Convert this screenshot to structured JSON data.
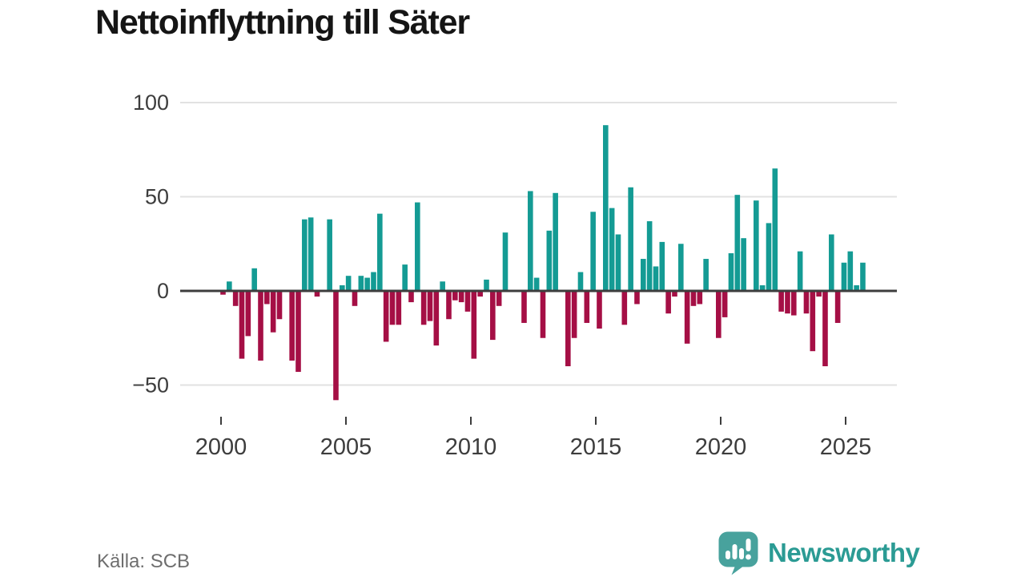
{
  "title": "Nettoinflyttning till Säter",
  "source": "Källa: SCB",
  "branding": {
    "name": "Newsworthy",
    "logo_icon": "newsworthy-speech-bubble-bar-chart-icon"
  },
  "colors": {
    "positive_bar": "#149b94",
    "negative_bar": "#a50f45",
    "zero_axis": "#3d3d3d",
    "gridline": "#e2e2e2",
    "tick_text": "#3d3d3d",
    "title_text": "#151515",
    "source_text": "#6e6e6e",
    "brand_text_teal": "#2b9b94",
    "brand_icon_teal": "#48a29d"
  },
  "chart_data": {
    "type": "bar",
    "title": "Nettoinflyttning till Säter",
    "frequency": "quarterly",
    "grid": "horizontal-light",
    "legend": "none",
    "x_axis": {
      "tick_labels": [
        "2000",
        "2005",
        "2010",
        "2015",
        "2020",
        "2025"
      ]
    },
    "y_axis": {
      "ticks": [
        100,
        50,
        0,
        -50
      ],
      "tick_labels": [
        "100",
        "50",
        "0",
        "−50"
      ],
      "range": [
        -65,
        105
      ]
    },
    "series": [
      {
        "name": "Nettoinflyttning",
        "quarters": [
          "2000Q1",
          "2000Q2",
          "2000Q3",
          "2000Q4",
          "2001Q1",
          "2001Q2",
          "2001Q3",
          "2001Q4",
          "2002Q1",
          "2002Q2",
          "2002Q3",
          "2002Q4",
          "2003Q1",
          "2003Q2",
          "2003Q3",
          "2003Q4",
          "2004Q1",
          "2004Q2",
          "2004Q3",
          "2004Q4",
          "2005Q1",
          "2005Q2",
          "2005Q3",
          "2005Q4",
          "2006Q1",
          "2006Q2",
          "2006Q3",
          "2006Q4",
          "2007Q1",
          "2007Q2",
          "2007Q3",
          "2007Q4",
          "2008Q1",
          "2008Q2",
          "2008Q3",
          "2008Q4",
          "2009Q1",
          "2009Q2",
          "2009Q3",
          "2009Q4",
          "2010Q1",
          "2010Q2",
          "2010Q3",
          "2010Q4",
          "2011Q1",
          "2011Q2",
          "2011Q3",
          "2011Q4",
          "2012Q1",
          "2012Q2",
          "2012Q3",
          "2012Q4",
          "2013Q1",
          "2013Q2",
          "2013Q3",
          "2013Q4",
          "2014Q1",
          "2014Q2",
          "2014Q3",
          "2014Q4",
          "2015Q1",
          "2015Q2",
          "2015Q3",
          "2015Q4",
          "2016Q1",
          "2016Q2",
          "2016Q3",
          "2016Q4",
          "2017Q1",
          "2017Q2",
          "2017Q3",
          "2017Q4",
          "2018Q1",
          "2018Q2",
          "2018Q3",
          "2018Q4",
          "2019Q1",
          "2019Q2",
          "2019Q3",
          "2019Q4",
          "2020Q1",
          "2020Q2",
          "2020Q3",
          "2020Q4",
          "2021Q1",
          "2021Q2",
          "2021Q3",
          "2021Q4",
          "2022Q1",
          "2022Q2",
          "2022Q3",
          "2022Q4",
          "2023Q1",
          "2023Q2",
          "2023Q3",
          "2023Q4",
          "2024Q1",
          "2024Q2",
          "2024Q3",
          "2024Q4",
          "2025Q1",
          "2025Q2",
          "2025Q3"
        ],
        "values": [
          -2,
          5,
          -8,
          -36,
          -24,
          12,
          -37,
          -7,
          -22,
          -15,
          0,
          -37,
          -43,
          38,
          39,
          -3,
          0,
          38,
          -58,
          3,
          8,
          -8,
          8,
          7,
          10,
          41,
          -27,
          -18,
          -18,
          14,
          -6,
          47,
          -18,
          -16,
          -29,
          5,
          -15,
          -5,
          -6,
          -11,
          -36,
          -3,
          6,
          -26,
          -8,
          31,
          0,
          0,
          -17,
          53,
          7,
          -25,
          32,
          52,
          0,
          -40,
          -25,
          10,
          -17,
          42,
          -20,
          88,
          44,
          30,
          -18,
          55,
          -7,
          17,
          37,
          13,
          26,
          -12,
          -3,
          25,
          -28,
          -8,
          -7,
          17,
          0,
          -25,
          -14,
          20,
          51,
          28,
          0,
          48,
          3,
          36,
          65,
          -11,
          -12,
          -13,
          21,
          -12,
          -32,
          -3,
          -40,
          30,
          -17,
          15,
          21,
          3,
          15
        ]
      }
    ]
  }
}
